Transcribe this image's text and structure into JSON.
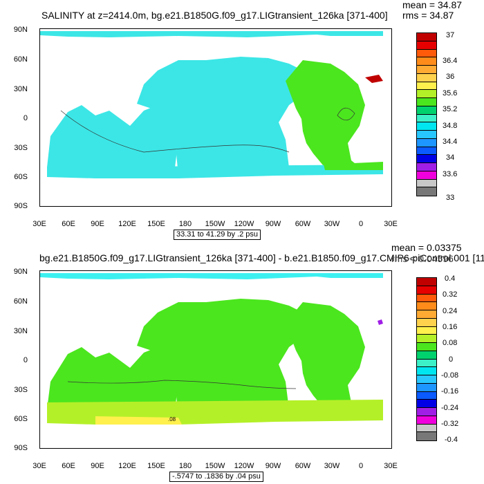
{
  "panel1": {
    "title": "SALINITY at z=2414.0m, bg.e21.B1850G.f09_g17.LIGtransient_126ka [371-400]",
    "mean": "mean = 34.87",
    "rms": "rms = 34.87",
    "range": "33.31 to 41.29 by .2 psu",
    "lat_labels": [
      "90N",
      "60N",
      "30N",
      "0",
      "30S",
      "60S",
      "90S"
    ],
    "lon_labels": [
      "30E",
      "60E",
      "90E",
      "120E",
      "150E",
      "180",
      "150W",
      "120W",
      "90W",
      "60W",
      "30W",
      "0",
      "30E"
    ],
    "colorbar": {
      "labels": [
        "37",
        "36.4",
        "36",
        "35.6",
        "35.2",
        "34.8",
        "34.4",
        "34",
        "33.6",
        "33"
      ],
      "colors": [
        "#c00000",
        "#e60000",
        "#ff5a0a",
        "#ff8c1a",
        "#ffaa33",
        "#ffd24d",
        "#fff04d",
        "#b4f028",
        "#4be61e",
        "#00d26e",
        "#3cf0c8",
        "#00e6f0",
        "#28c8ff",
        "#1e96ff",
        "#0a5aff",
        "#0000e6",
        "#a01ee6",
        "#f000dc",
        "#c8c8c8",
        "#787878"
      ]
    },
    "ocean_color": "#3ce6e6",
    "atlantic_color": "#4be61e",
    "contour_label": ""
  },
  "panel2": {
    "title": "bg.e21.B1850G.f09_g17.LIGtransient_126ka [371-400] - b.e21.B1850.f09_g17.CMIP6-piControl.001 [11",
    "mean": "mean = 0.03375",
    "rms": "rms = 0.04596",
    "range": "-.5747 to .1836 by .04 psu",
    "lat_labels": [
      "90N",
      "60N",
      "30N",
      "0",
      "30S",
      "60S",
      "90S"
    ],
    "lon_labels": [
      "30E",
      "60E",
      "90E",
      "120E",
      "150E",
      "180",
      "150W",
      "120W",
      "90W",
      "60W",
      "30W",
      "0",
      "30E"
    ],
    "colorbar": {
      "labels": [
        "0.4",
        "0.32",
        "0.24",
        "0.16",
        "0.08",
        "0",
        "-0.08",
        "-0.16",
        "-0.24",
        "-0.32",
        "-0.4"
      ],
      "colors": [
        "#c00000",
        "#e60000",
        "#ff5a0a",
        "#ff8c1a",
        "#ffaa33",
        "#ffd24d",
        "#fff04d",
        "#b4f028",
        "#4be61e",
        "#00d26e",
        "#3cf0c8",
        "#00e6f0",
        "#28c8ff",
        "#1e96ff",
        "#0a5aff",
        "#0000e6",
        "#a01ee6",
        "#f000dc",
        "#c8c8c8",
        "#787878"
      ]
    },
    "ocean_color": "#4be61e",
    "south_color": "#b4f028",
    "contour_label": ".08"
  }
}
